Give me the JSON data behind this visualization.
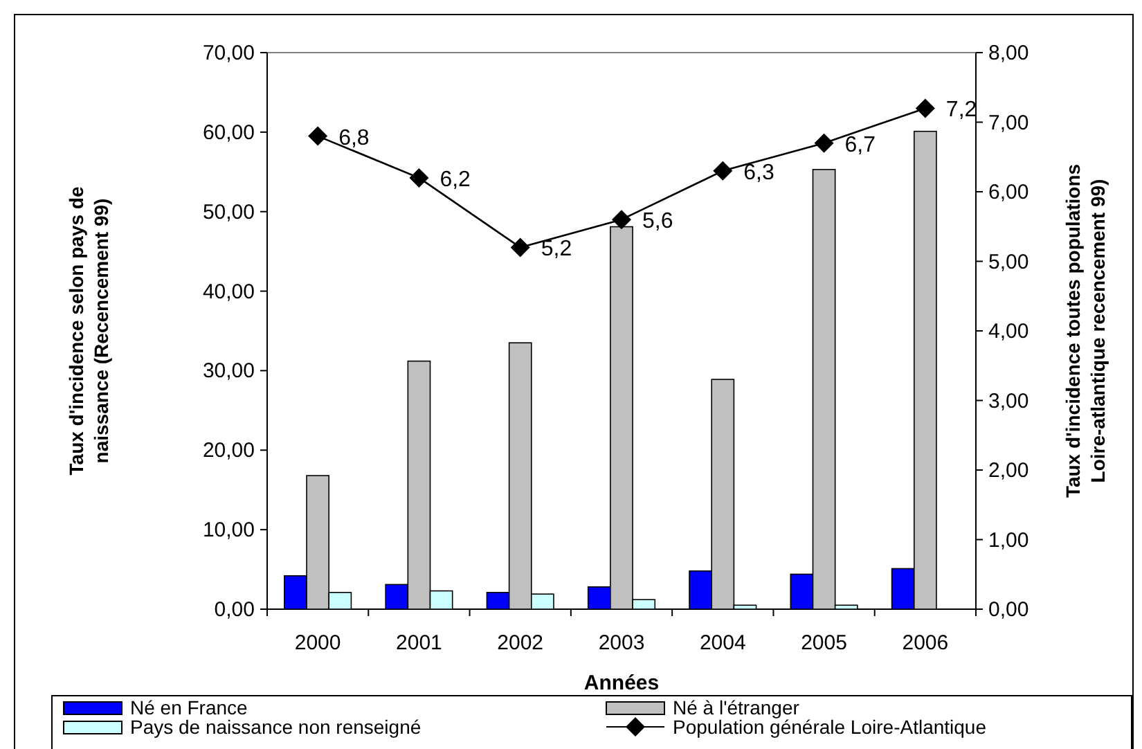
{
  "chart_data": {
    "type": "bar",
    "xlabel": "Années",
    "ylabel": "Taux d'incidence selon pays de naissance (Recencement 99)",
    "y2label": "Taux d'incidence toutes populations Loire-atlantique recencement 99)",
    "categories": [
      "2000",
      "2001",
      "2002",
      "2003",
      "2004",
      "2005",
      "2006"
    ],
    "series": [
      {
        "name": "Né en France",
        "color": "#0000ff",
        "values": [
          4.2,
          3.1,
          2.1,
          2.8,
          4.8,
          4.4,
          5.1
        ]
      },
      {
        "name": "Né à l'étranger",
        "color": "#c0c0c0",
        "values": [
          16.8,
          31.2,
          33.5,
          48.1,
          28.9,
          55.3,
          60.1
        ]
      },
      {
        "name": "Pays de naissance non  renseigné",
        "color": "#ccffff",
        "values": [
          2.1,
          2.3,
          1.9,
          1.2,
          0.5,
          0.5,
          null
        ]
      },
      {
        "name": "Population générale Loire-Atlantique",
        "type": "line",
        "axis": "y2",
        "color": "#000000",
        "marker": "diamond",
        "values": [
          6.8,
          6.2,
          5.2,
          5.6,
          6.3,
          6.7,
          7.2
        ],
        "value_labels": [
          "6,8",
          "6,2",
          "5,2",
          "5,6",
          "6,3",
          "6,7",
          "7,2"
        ]
      }
    ],
    "ylim": [
      0,
      70
    ],
    "yticks": [
      {
        "value": 0,
        "label": "0,00"
      },
      {
        "value": 10,
        "label": "10,00"
      },
      {
        "value": 20,
        "label": "20,00"
      },
      {
        "value": 30,
        "label": "30,00"
      },
      {
        "value": 40,
        "label": "40,00"
      },
      {
        "value": 50,
        "label": "50,00"
      },
      {
        "value": 60,
        "label": "60,00"
      },
      {
        "value": 70,
        "label": "70,00"
      }
    ],
    "y2lim": [
      0,
      8
    ],
    "y2ticks": [
      {
        "value": 0,
        "label": "0,00"
      },
      {
        "value": 1,
        "label": "1,00"
      },
      {
        "value": 2,
        "label": "2,00"
      },
      {
        "value": 3,
        "label": "3,00"
      },
      {
        "value": 4,
        "label": "4,00"
      },
      {
        "value": 5,
        "label": "5,00"
      },
      {
        "value": 6,
        "label": "6,00"
      },
      {
        "value": 7,
        "label": "7,00"
      },
      {
        "value": 8,
        "label": "8,00"
      }
    ],
    "legend": "bottom",
    "grid": false
  }
}
